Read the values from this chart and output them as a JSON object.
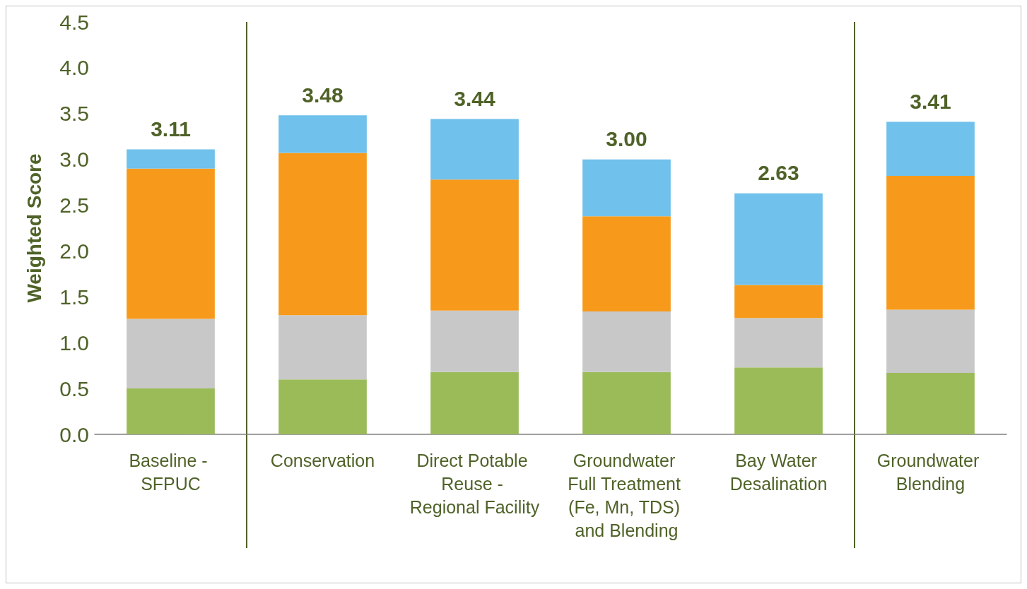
{
  "chart_data": {
    "type": "bar",
    "stacked": true,
    "ylabel": "Weighted Score",
    "categories": [
      "Baseline - SFPUC",
      "Conservation",
      "Direct Potable Reuse - Regional Facility",
      "Groundwater Full Treatment (Fe, Mn, TDS) and Blending",
      "Bay Water Desalination",
      "Groundwater Blending"
    ],
    "series": [
      {
        "color": "#9bbb59",
        "values": [
          0.5,
          0.6,
          0.68,
          0.68,
          0.73,
          0.67
        ]
      },
      {
        "color": "#c8c8c8",
        "values": [
          0.76,
          0.7,
          0.67,
          0.66,
          0.54,
          0.69
        ]
      },
      {
        "color": "#f79a1b",
        "values": [
          1.64,
          1.77,
          1.43,
          1.04,
          0.36,
          1.46
        ]
      },
      {
        "color": "#70c1ec",
        "values": [
          0.21,
          0.41,
          0.66,
          0.62,
          1.0,
          0.59
        ]
      }
    ],
    "totals": [
      "3.11",
      "3.48",
      "3.44",
      "3.00",
      "2.63",
      "3.41"
    ],
    "ylim": [
      0,
      4.5
    ],
    "yticks": [
      {
        "value": 0,
        "label": "0.0"
      },
      {
        "value": 0.5,
        "label": "0.5"
      },
      {
        "value": 1,
        "label": "1.0"
      },
      {
        "value": 1.5,
        "label": "1.5"
      },
      {
        "value": 2,
        "label": "2.0"
      },
      {
        "value": 2.5,
        "label": "2.5"
      },
      {
        "value": 3,
        "label": "3.0"
      },
      {
        "value": 3.5,
        "label": "3.5"
      },
      {
        "value": 4,
        "label": "4.0"
      },
      {
        "value": 4.5,
        "label": "4.5"
      }
    ],
    "grid": false
  }
}
